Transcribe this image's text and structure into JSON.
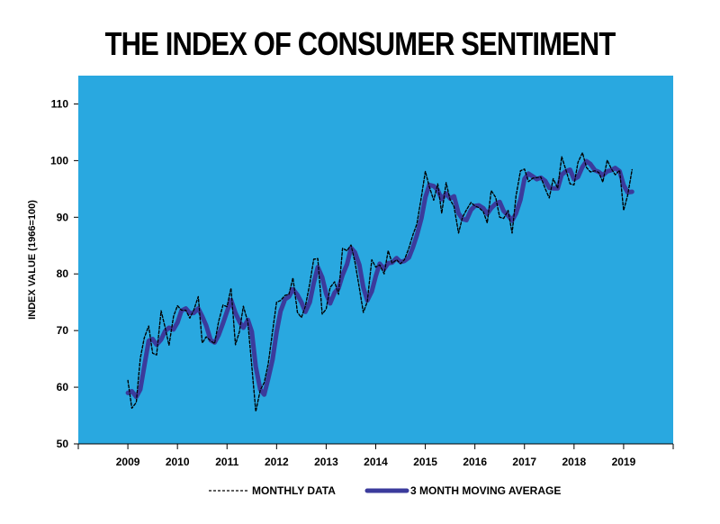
{
  "chart_data": {
    "type": "line",
    "title": "THE INDEX OF CONSUMER SENTIMENT",
    "xlabel": "",
    "ylabel": "INDEX VALUE (1966=100)",
    "x_ticks": [
      "2009",
      "2010",
      "2011",
      "2012",
      "2013",
      "2014",
      "2015",
      "2016",
      "2017",
      "2018",
      "2019"
    ],
    "xlim": [
      2008,
      2020
    ],
    "ylim": [
      50,
      115
    ],
    "y_ticks": [
      50,
      60,
      70,
      80,
      90,
      100,
      110
    ],
    "grid": false,
    "background_color": "#29a8e0",
    "legend_position": "bottom",
    "series": [
      {
        "name": "MONTHLY DATA",
        "color": "#000000",
        "style": "dashed",
        "x": [
          2009.0,
          2009.08,
          2009.17,
          2009.25,
          2009.33,
          2009.42,
          2009.5,
          2009.58,
          2009.67,
          2009.75,
          2009.83,
          2009.92,
          2010.0,
          2010.08,
          2010.17,
          2010.25,
          2010.33,
          2010.42,
          2010.5,
          2010.58,
          2010.67,
          2010.75,
          2010.83,
          2010.92,
          2011.0,
          2011.08,
          2011.17,
          2011.25,
          2011.33,
          2011.42,
          2011.5,
          2011.58,
          2011.67,
          2011.75,
          2011.83,
          2011.92,
          2012.0,
          2012.08,
          2012.17,
          2012.25,
          2012.33,
          2012.42,
          2012.5,
          2012.58,
          2012.67,
          2012.75,
          2012.83,
          2012.92,
          2013.0,
          2013.08,
          2013.17,
          2013.25,
          2013.33,
          2013.42,
          2013.5,
          2013.58,
          2013.67,
          2013.75,
          2013.83,
          2013.92,
          2014.0,
          2014.08,
          2014.17,
          2014.25,
          2014.33,
          2014.42,
          2014.5,
          2014.58,
          2014.67,
          2014.75,
          2014.83,
          2014.92,
          2015.0,
          2015.08,
          2015.17,
          2015.25,
          2015.33,
          2015.42,
          2015.5,
          2015.58,
          2015.67,
          2015.75,
          2015.83,
          2015.92,
          2016.0,
          2016.08,
          2016.17,
          2016.25,
          2016.33,
          2016.42,
          2016.5,
          2016.58,
          2016.67,
          2016.75,
          2016.83,
          2016.92,
          2017.0,
          2017.08,
          2017.17,
          2017.25,
          2017.33,
          2017.42,
          2017.5,
          2017.58,
          2017.67,
          2017.75,
          2017.83,
          2017.92,
          2018.0,
          2018.08,
          2018.17,
          2018.25,
          2018.33,
          2018.42,
          2018.5,
          2018.58,
          2018.67,
          2018.75,
          2018.83,
          2018.92,
          2019.0,
          2019.08,
          2019.17
        ],
        "values": [
          61.2,
          56.3,
          57.3,
          65.1,
          68.7,
          70.8,
          66.0,
          65.7,
          73.5,
          70.6,
          67.4,
          72.5,
          74.4,
          73.6,
          73.6,
          72.2,
          73.6,
          76.0,
          67.8,
          68.9,
          68.2,
          67.7,
          71.6,
          74.5,
          74.2,
          77.5,
          67.5,
          69.8,
          74.3,
          71.5,
          63.7,
          55.7,
          59.5,
          60.8,
          64.1,
          69.9,
          75.0,
          75.3,
          76.2,
          76.4,
          79.3,
          73.2,
          72.3,
          74.3,
          78.3,
          82.6,
          82.7,
          72.9,
          73.8,
          77.6,
          78.6,
          76.4,
          84.5,
          84.1,
          85.1,
          82.1,
          77.5,
          73.2,
          75.1,
          82.5,
          81.2,
          81.6,
          80.0,
          84.1,
          81.9,
          82.5,
          81.8,
          82.5,
          84.6,
          86.9,
          88.8,
          93.6,
          98.1,
          95.4,
          93.0,
          95.9,
          90.7,
          96.1,
          93.1,
          91.9,
          87.2,
          90.0,
          91.3,
          92.6,
          92.0,
          91.7,
          91.0,
          89.0,
          94.7,
          93.5,
          90.0,
          89.8,
          91.2,
          87.2,
          93.8,
          98.2,
          98.5,
          96.3,
          96.9,
          97.0,
          97.1,
          95.0,
          93.4,
          96.8,
          95.1,
          100.7,
          98.5,
          95.9,
          95.7,
          99.7,
          101.4,
          98.8,
          98.0,
          98.2,
          97.9,
          96.2,
          100.1,
          98.6,
          97.5,
          98.3,
          91.2,
          93.8,
          98.4
        ]
      },
      {
        "name": "3 MONTH MOVING AVERAGE",
        "color": "#3b3b9c",
        "style": "solid",
        "x": [
          2009.0,
          2009.08,
          2009.17,
          2009.25,
          2009.33,
          2009.42,
          2009.5,
          2009.58,
          2009.67,
          2009.75,
          2009.83,
          2009.92,
          2010.0,
          2010.08,
          2010.17,
          2010.25,
          2010.33,
          2010.42,
          2010.5,
          2010.58,
          2010.67,
          2010.75,
          2010.83,
          2010.92,
          2011.0,
          2011.08,
          2011.17,
          2011.25,
          2011.33,
          2011.42,
          2011.5,
          2011.58,
          2011.67,
          2011.75,
          2011.83,
          2011.92,
          2012.0,
          2012.08,
          2012.17,
          2012.25,
          2012.33,
          2012.42,
          2012.5,
          2012.58,
          2012.67,
          2012.75,
          2012.83,
          2012.92,
          2013.0,
          2013.08,
          2013.17,
          2013.25,
          2013.33,
          2013.42,
          2013.5,
          2013.58,
          2013.67,
          2013.75,
          2013.83,
          2013.92,
          2014.0,
          2014.08,
          2014.17,
          2014.25,
          2014.33,
          2014.42,
          2014.5,
          2014.58,
          2014.67,
          2014.75,
          2014.83,
          2014.92,
          2015.0,
          2015.08,
          2015.17,
          2015.25,
          2015.33,
          2015.42,
          2015.5,
          2015.58,
          2015.67,
          2015.75,
          2015.83,
          2015.92,
          2016.0,
          2016.08,
          2016.17,
          2016.25,
          2016.33,
          2016.42,
          2016.5,
          2016.58,
          2016.67,
          2016.75,
          2016.83,
          2016.92,
          2017.0,
          2017.08,
          2017.17,
          2017.25,
          2017.33,
          2017.42,
          2017.5,
          2017.58,
          2017.67,
          2017.75,
          2017.83,
          2017.92,
          2018.0,
          2018.08,
          2018.17,
          2018.25,
          2018.33,
          2018.42,
          2018.5,
          2018.58,
          2018.67,
          2018.75,
          2018.83,
          2018.92,
          2019.0,
          2019.08,
          2019.17
        ],
        "values": [
          59.0,
          59.3,
          58.3,
          59.6,
          63.7,
          68.2,
          68.5,
          67.5,
          68.4,
          69.9,
          70.5,
          70.2,
          71.4,
          73.5,
          73.9,
          73.1,
          73.1,
          73.9,
          72.5,
          70.9,
          68.3,
          67.9,
          69.2,
          71.3,
          73.4,
          75.4,
          73.1,
          71.6,
          70.5,
          71.9,
          69.8,
          63.6,
          59.6,
          58.7,
          61.5,
          64.9,
          69.7,
          73.4,
          75.5,
          76.0,
          77.3,
          76.3,
          75.0,
          73.3,
          75.0,
          78.4,
          81.2,
          79.4,
          76.5,
          74.8,
          76.7,
          77.5,
          79.8,
          81.7,
          84.6,
          83.8,
          81.6,
          77.6,
          75.3,
          76.9,
          79.6,
          81.8,
          80.9,
          81.9,
          82.0,
          82.8,
          82.1,
          82.3,
          82.9,
          84.7,
          86.8,
          89.8,
          93.5,
          95.7,
          95.5,
          94.8,
          93.2,
          94.2,
          93.3,
          93.7,
          90.7,
          89.7,
          89.5,
          91.3,
          92.0,
          92.1,
          91.6,
          90.6,
          91.6,
          92.4,
          92.7,
          91.1,
          90.3,
          89.4,
          90.7,
          93.1,
          96.8,
          97.7,
          97.2,
          96.7,
          97.0,
          96.4,
          95.2,
          95.1,
          95.1,
          97.5,
          98.1,
          98.4,
          96.7,
          97.1,
          98.9,
          99.9,
          99.4,
          98.3,
          98.0,
          97.4,
          98.1,
          98.3,
          98.7,
          98.1,
          95.7,
          94.4,
          94.5
        ]
      }
    ],
    "legend": [
      "MONTHLY DATA",
      "3 MONTH MOVING AVERAGE"
    ]
  }
}
